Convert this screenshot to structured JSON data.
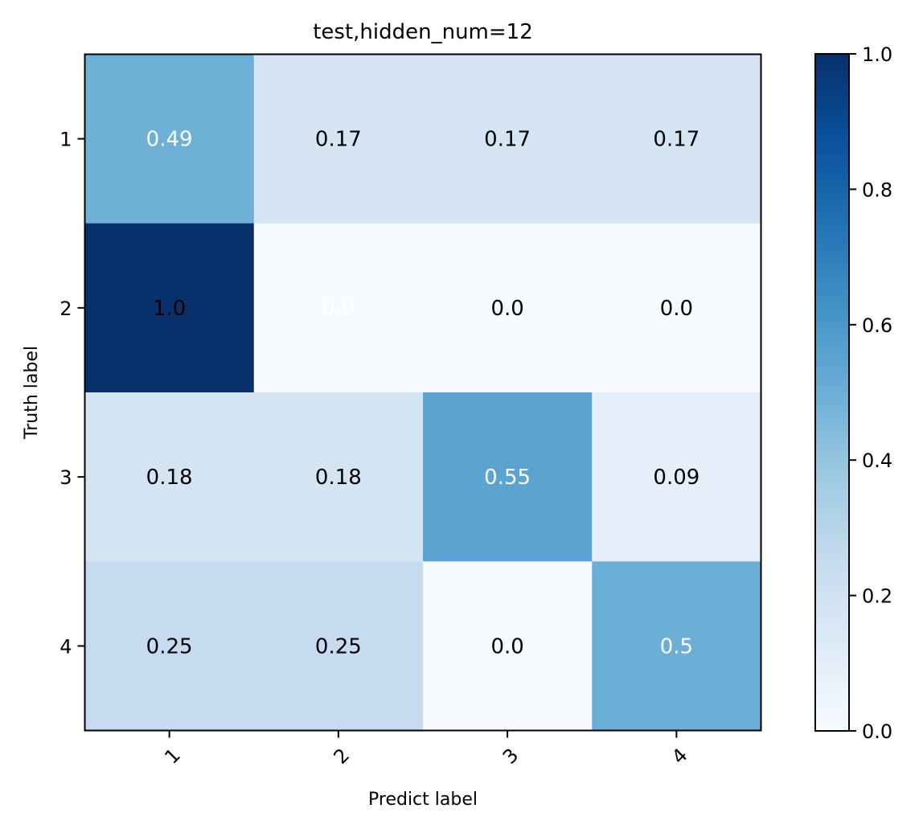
{
  "chart_data": {
    "type": "heatmap",
    "title": "test,hidden_num=12",
    "xlabel": "Predict label",
    "ylabel": "Truth label",
    "x_categories": [
      "1",
      "2",
      "3",
      "4"
    ],
    "y_categories": [
      "1",
      "2",
      "3",
      "4"
    ],
    "values": [
      [
        0.49,
        0.17,
        0.17,
        0.17
      ],
      [
        1.0,
        0.0,
        0.0,
        0.0
      ],
      [
        0.18,
        0.18,
        0.55,
        0.09
      ],
      [
        0.25,
        0.25,
        0.0,
        0.5
      ]
    ],
    "cell_labels": [
      [
        "0.49",
        "0.17",
        "0.17",
        "0.17"
      ],
      [
        "1.0",
        "0.0",
        "0.0",
        "0.0"
      ],
      [
        "0.18",
        "0.18",
        "0.55",
        "0.09"
      ],
      [
        "0.25",
        "0.25",
        "0.0",
        "0.5"
      ]
    ],
    "colormap": "Blues",
    "colorbar": {
      "range": [
        0.0,
        1.0
      ],
      "ticks": [
        "0.0",
        "0.2",
        "0.4",
        "0.6",
        "0.8",
        "1.0"
      ]
    }
  }
}
